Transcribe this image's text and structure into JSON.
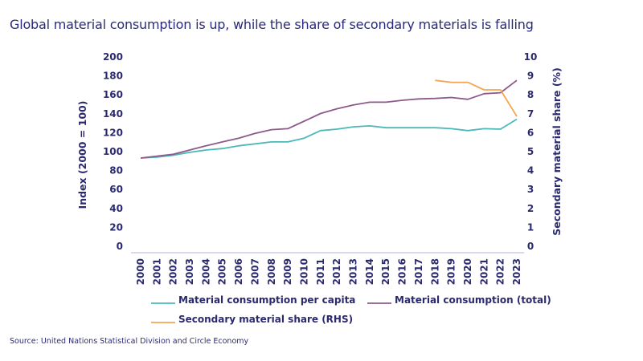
{
  "header": {
    "title": "Global material consumption is up, while the share of secondary materials is falling"
  },
  "footer": {
    "source": "Source: United Nations Statistical Division and Circle Economy"
  },
  "chart_data": {
    "type": "line",
    "title": "Global material consumption is up, while the share of secondary materials is falling",
    "xlabel": "",
    "ylabel": "Index (2000 = 100)",
    "y2label": "Secondary material share (%)",
    "ylim": [
      0,
      200
    ],
    "y2lim": [
      0,
      10
    ],
    "yticks": [
      "0",
      "20",
      "40",
      "60",
      "80",
      "100",
      "120",
      "140",
      "160",
      "180",
      "200"
    ],
    "y2ticks": [
      "0",
      "1",
      "2",
      "3",
      "4",
      "5",
      "6",
      "7",
      "8",
      "9",
      "10"
    ],
    "grid": false,
    "legend_position": "bottom",
    "x": [
      "2000",
      "2001",
      "2002",
      "2003",
      "2004",
      "2005",
      "2006",
      "2007",
      "2008",
      "2009",
      "2010",
      "2011",
      "2012",
      "2013",
      "2014",
      "2015",
      "2016",
      "2017",
      "2018",
      "2019",
      "2020",
      "2021",
      "2022",
      "2023"
    ],
    "series": [
      {
        "name": "Material consumption per capita",
        "axis": "left",
        "color": "#4bb8ba",
        "values": [
          100,
          101,
          103,
          106,
          108.5,
          110,
          113,
          115,
          117,
          117,
          121,
          129,
          130.5,
          133,
          134,
          132,
          132,
          132,
          132,
          131,
          129,
          131,
          130.5,
          141
        ]
      },
      {
        "name": "Material consumption (total)",
        "axis": "left",
        "color": "#8e5a8a",
        "values": [
          100,
          102,
          104,
          108.5,
          113,
          117,
          121,
          126,
          130,
          131,
          139,
          147,
          152,
          156,
          159,
          159,
          161,
          162.5,
          163,
          164,
          162,
          168,
          169,
          182
        ]
      },
      {
        "name": "Secondary material share (RHS)",
        "axis": "right",
        "color": "#f5a552",
        "values": [
          null,
          null,
          null,
          null,
          null,
          null,
          null,
          null,
          null,
          null,
          null,
          null,
          null,
          null,
          null,
          null,
          null,
          null,
          9.1,
          9.0,
          9.0,
          8.6,
          8.6,
          7.2
        ]
      }
    ]
  }
}
